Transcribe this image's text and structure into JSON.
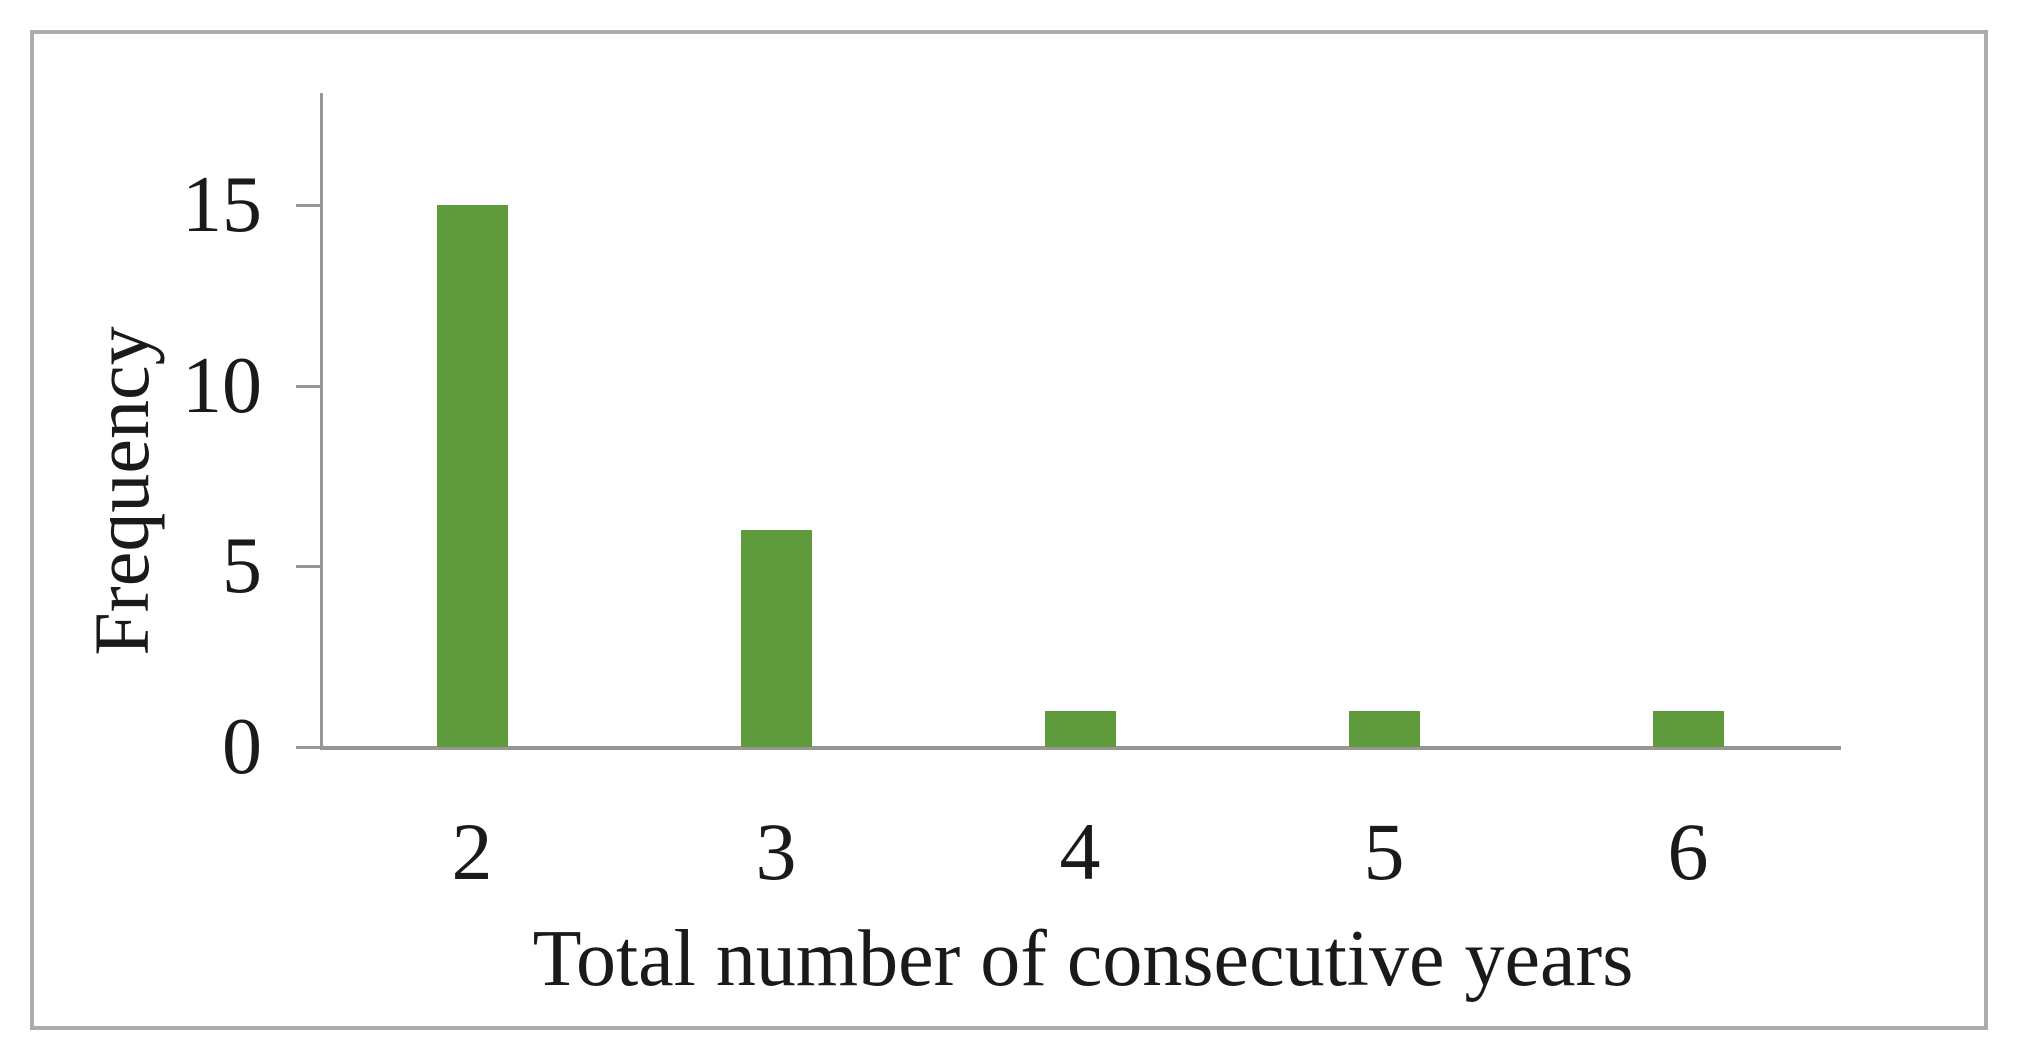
{
  "figure": {
    "background": "#FFFFFF",
    "frame_border_color": "#ACACAC"
  },
  "chart_data": {
    "type": "bar",
    "title": "",
    "categories": [
      "2",
      "3",
      "4",
      "5",
      "6"
    ],
    "values": [
      15,
      6,
      1,
      1,
      1
    ],
    "xlabel": "Total number of consecutive years",
    "ylabel": "Frequency",
    "yticks": [
      0,
      5,
      10,
      15
    ],
    "ylim": [
      0,
      18
    ],
    "grid": false,
    "legend": false,
    "bar_color": "#5F9B3C",
    "axis_color": "#969696",
    "text_color": "#1A1A1A"
  }
}
